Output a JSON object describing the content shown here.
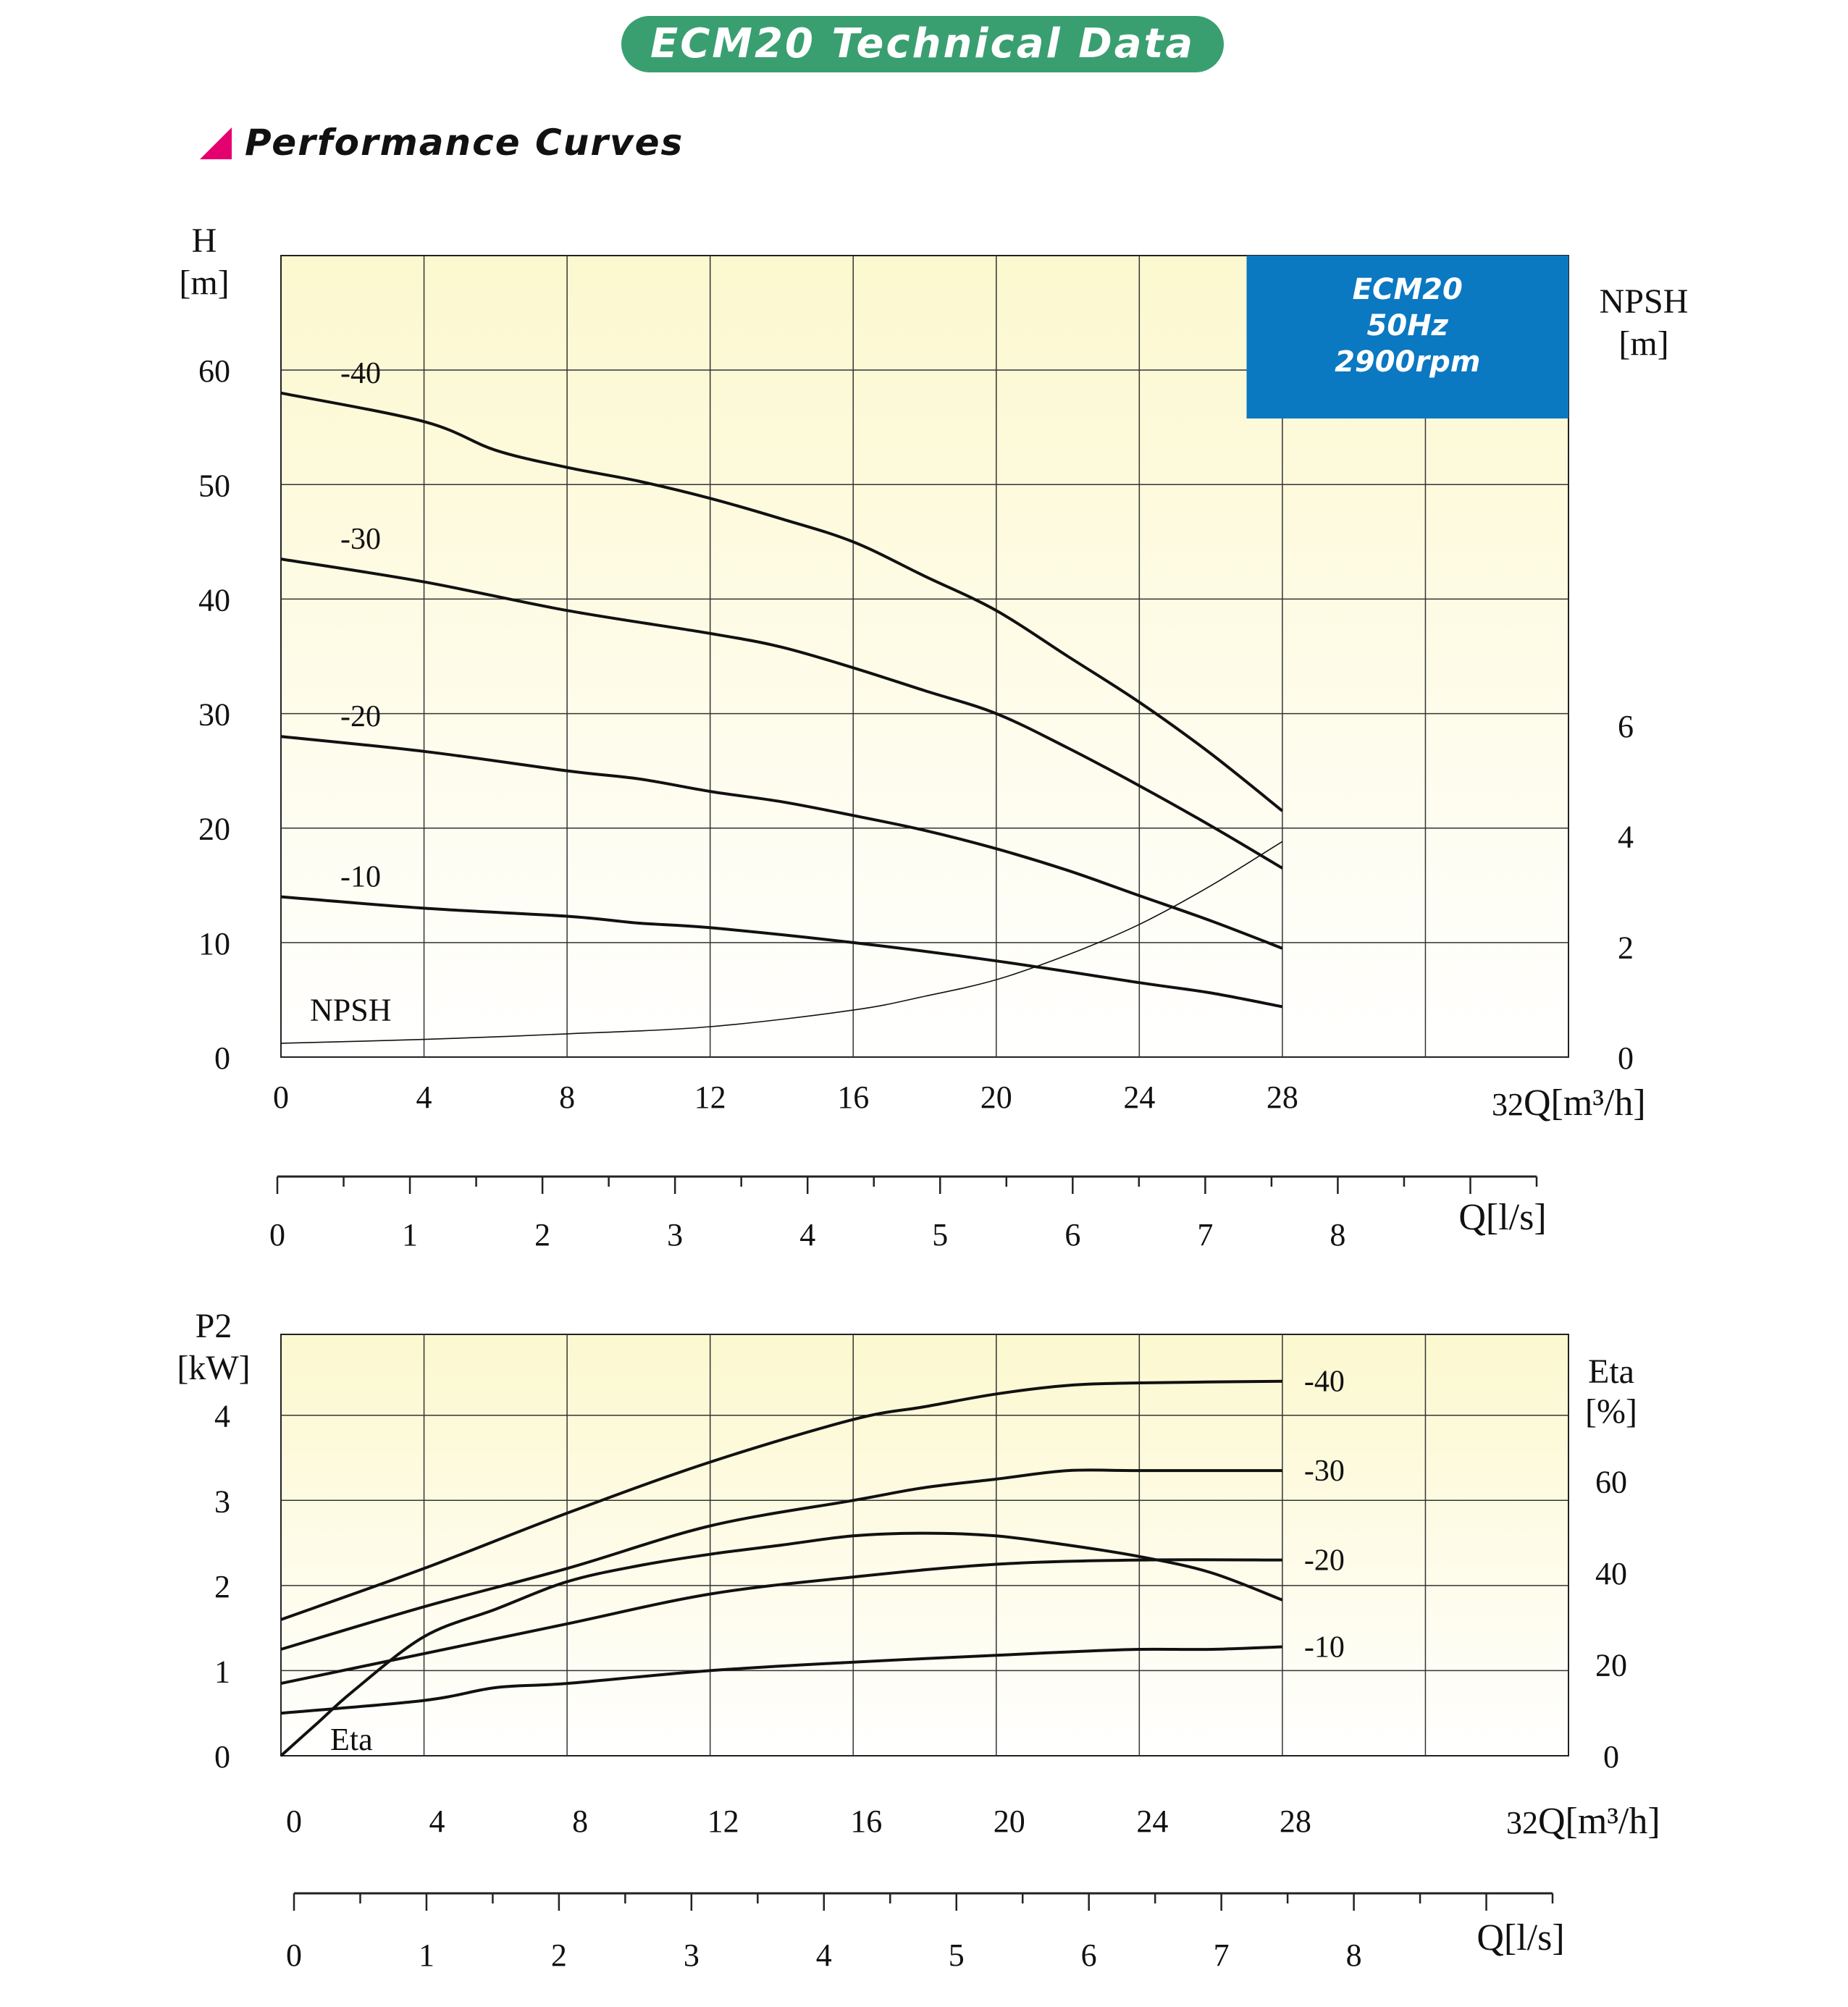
{
  "header": {
    "banner": "ECM20 Technical Data",
    "section_title": "Performance Curves"
  },
  "colors": {
    "banner": "#3a9f70",
    "section_marker": "#e4006e",
    "legend_box": "#0b78c2",
    "plot_fill_top": "#fcf8cf",
    "plot_fill_bottom": "#ffffff"
  },
  "chart_data": [
    {
      "type": "line",
      "title": "",
      "legend_box": {
        "lines": [
          "ECM20",
          "50Hz",
          "2900rpm"
        ],
        "placement": "top-right"
      },
      "x": {
        "label": "Q[m³/h]",
        "label_prefix": "32",
        "ticks": [
          0,
          4,
          8,
          12,
          16,
          20,
          24,
          28
        ],
        "range": [
          0,
          36
        ]
      },
      "x2": {
        "label": "Q[l/s]",
        "ticks": [
          0,
          1,
          2,
          3,
          4,
          5,
          6,
          7,
          8
        ],
        "range": [
          0,
          9.5
        ]
      },
      "y": {
        "label_line1": "H",
        "label_line2": "[m]",
        "ticks": [
          0,
          10,
          20,
          30,
          40,
          50,
          60
        ],
        "range": [
          0,
          70
        ]
      },
      "y2": {
        "label_line1": "NPSH",
        "label_line2": "[m]",
        "ticks": [
          0,
          2,
          4,
          6
        ],
        "range": [
          0,
          14.5
        ]
      },
      "grid": true,
      "series": [
        {
          "name": "-40",
          "axis": "y",
          "x": [
            0,
            4,
            6,
            8,
            10,
            12,
            14,
            16,
            18,
            20,
            22,
            24,
            26,
            28
          ],
          "values": [
            58,
            55.5,
            53,
            51.5,
            50.3,
            48.8,
            47,
            45,
            42,
            39,
            35,
            31,
            26.5,
            21.5
          ]
        },
        {
          "name": "-30",
          "axis": "y",
          "x": [
            0,
            4,
            8,
            12,
            14,
            16,
            18,
            20,
            22,
            24,
            26,
            28
          ],
          "values": [
            43.5,
            41.5,
            39,
            37,
            35.8,
            34,
            32,
            30,
            27,
            23.7,
            20.2,
            16.5
          ]
        },
        {
          "name": "-20",
          "axis": "y",
          "x": [
            0,
            4,
            8,
            10,
            12,
            14,
            16,
            18,
            20,
            22,
            24,
            26,
            28
          ],
          "values": [
            28,
            26.7,
            25,
            24.3,
            23.2,
            22.3,
            21.1,
            19.8,
            18.2,
            16.3,
            14.1,
            11.9,
            9.5
          ]
        },
        {
          "name": "-10",
          "axis": "y",
          "x": [
            0,
            4,
            8,
            10,
            12,
            16,
            20,
            24,
            26,
            28
          ],
          "values": [
            14,
            13,
            12.3,
            11.7,
            11.3,
            10,
            8.4,
            6.5,
            5.6,
            4.4
          ]
        },
        {
          "name": "NPSH",
          "axis": "y2",
          "x": [
            0,
            4,
            8,
            12,
            16,
            18,
            20,
            22,
            24,
            26,
            28
          ],
          "values": [
            0.25,
            0.32,
            0.42,
            0.55,
            0.85,
            1.1,
            1.4,
            1.85,
            2.4,
            3.1,
            3.9
          ]
        }
      ]
    },
    {
      "type": "line",
      "title": "",
      "x": {
        "label": "Q[m³/h]",
        "label_prefix": "32",
        "ticks": [
          0,
          4,
          8,
          12,
          16,
          20,
          24,
          28
        ],
        "range": [
          0,
          36
        ]
      },
      "x2": {
        "label": "Q[l/s]",
        "ticks": [
          0,
          1,
          2,
          3,
          4,
          5,
          6,
          7,
          8
        ],
        "range": [
          0,
          9.5
        ]
      },
      "y": {
        "label_line1": "P2",
        "label_line2": "[kW]",
        "ticks": [
          0,
          1,
          2,
          3,
          4
        ],
        "range": [
          0,
          4.95
        ]
      },
      "y2": {
        "label_line1": "Eta",
        "label_line2": "[%]",
        "ticks": [
          0,
          20,
          40,
          60
        ],
        "range": [
          0,
          92
        ]
      },
      "grid": true,
      "series": [
        {
          "name": "-40",
          "axis": "y",
          "x": [
            0,
            4,
            8,
            12,
            16,
            18,
            20,
            22,
            24,
            28
          ],
          "values": [
            1.6,
            2.2,
            2.85,
            3.45,
            3.95,
            4.1,
            4.25,
            4.35,
            4.38,
            4.4
          ]
        },
        {
          "name": "-30",
          "axis": "y",
          "x": [
            0,
            4,
            8,
            12,
            16,
            18,
            20,
            22,
            24,
            28
          ],
          "values": [
            1.25,
            1.75,
            2.2,
            2.7,
            3.0,
            3.15,
            3.25,
            3.35,
            3.35,
            3.35
          ]
        },
        {
          "name": "-20",
          "axis": "y",
          "x": [
            0,
            4,
            8,
            12,
            16,
            20,
            24,
            28
          ],
          "values": [
            0.85,
            1.2,
            1.55,
            1.9,
            2.1,
            2.25,
            2.3,
            2.3
          ]
        },
        {
          "name": "-10",
          "axis": "y",
          "x": [
            0,
            4,
            6,
            8,
            12,
            16,
            20,
            22,
            24,
            26,
            28
          ],
          "values": [
            0.5,
            0.65,
            0.8,
            0.85,
            1.0,
            1.1,
            1.18,
            1.22,
            1.25,
            1.25,
            1.28
          ]
        },
        {
          "name": "Eta",
          "axis": "y2",
          "x": [
            0,
            1,
            2,
            4,
            6,
            8,
            10,
            12,
            14,
            16,
            18,
            20,
            22,
            24,
            26,
            28
          ],
          "values": [
            0,
            7,
            14,
            26,
            32,
            38,
            41.5,
            44,
            46,
            48,
            48.6,
            48,
            46,
            43.5,
            40,
            34
          ]
        }
      ]
    }
  ]
}
